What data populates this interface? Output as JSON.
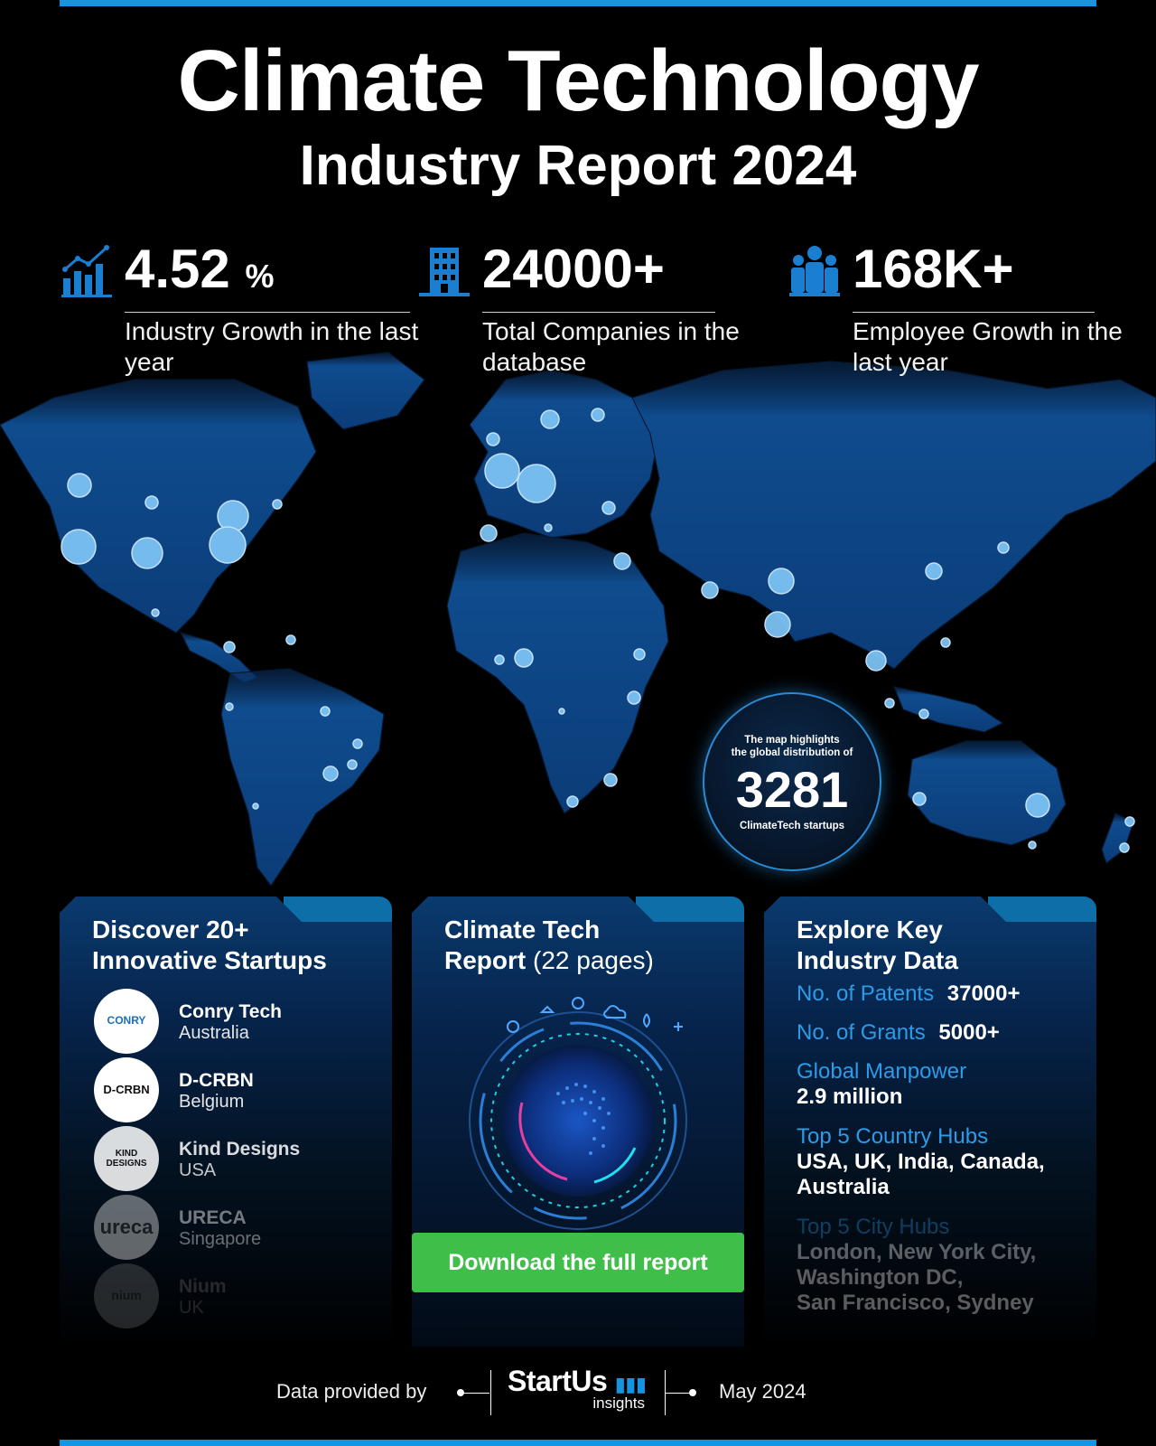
{
  "header": {
    "title": "Climate Technology",
    "subtitle": "Industry Report 2024"
  },
  "stats": [
    {
      "icon": "growth-chart-icon",
      "value": "4.52",
      "unit": "%",
      "caption": "Industry Growth in the last year"
    },
    {
      "icon": "building-icon",
      "value": "24000+",
      "unit": "",
      "caption": "Total Companies in the database"
    },
    {
      "icon": "people-icon",
      "value": "168K+",
      "unit": "",
      "caption": "Employee Growth in the last year"
    }
  ],
  "map_badge": {
    "line1": "The map highlights",
    "line2": "the global distribution of",
    "count": "3281",
    "line3": "ClimateTech startups"
  },
  "startups_panel": {
    "title_line1": "Discover 20+",
    "title_line2": "Innovative Startups",
    "items": [
      {
        "name": "Conry Tech",
        "country": "Australia",
        "logo_text": "CONRY"
      },
      {
        "name": "D-CRBN",
        "country": "Belgium",
        "logo_text": "D-CRBN"
      },
      {
        "name": "Kind Designs",
        "country": "USA",
        "logo_text": "KIND DESIGNS"
      },
      {
        "name": "URECA",
        "country": "Singapore",
        "logo_text": "ureca"
      },
      {
        "name": "Nium",
        "country": "UK",
        "logo_text": "nium"
      }
    ]
  },
  "report_panel": {
    "title_bold_1": "Climate Tech",
    "title_bold_2": "Report",
    "title_light": "(22 pages)",
    "button_label": "Download the full report"
  },
  "data_panel": {
    "title_line1": "Explore Key",
    "title_line2": "Industry Data",
    "patents_label": "No. of Patents",
    "patents_value": "37000+",
    "grants_label": "No. of Grants",
    "grants_value": "5000+",
    "manpower_label": "Global Manpower",
    "manpower_value": "2.9 million",
    "country_hubs_label": "Top 5 Country Hubs",
    "country_hubs_value": "USA, UK, India, Canada, Australia",
    "city_hubs_label": "Top 5 City Hubs",
    "city_hubs_value_1": "London, New York City,",
    "city_hubs_value_2": "Washington DC,",
    "city_hubs_value_3": "San Francisco, Sydney"
  },
  "footer": {
    "provided_by": "Data provided by",
    "brand": "StartUs",
    "brand_sub": "insights",
    "date": "May 2024"
  },
  "colors": {
    "accent_blue": "#1694df",
    "map_land": "#0f4c8e",
    "button_green": "#3fbe4a",
    "label_blue": "#2c9be8"
  }
}
